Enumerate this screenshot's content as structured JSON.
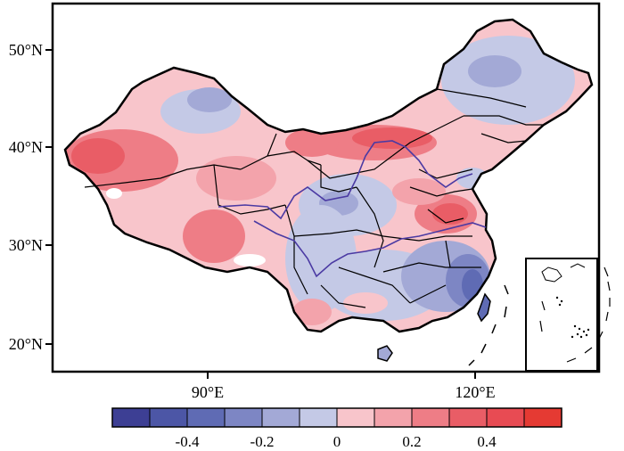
{
  "map": {
    "lat_labels": [
      "50°N",
      "40°N",
      "30°N",
      "20°N"
    ],
    "lon_labels": [
      "90°E",
      "120°E"
    ]
  },
  "colorbar": {
    "colors": [
      "#3d3f94",
      "#4c56a6",
      "#5f6bb4",
      "#7d86c4",
      "#a3a9d6",
      "#c4c9e6",
      "#f8c5cb",
      "#f3a3ab",
      "#ee7d86",
      "#e95d66",
      "#e84b53",
      "#e53a33"
    ],
    "tick_labels": [
      "-0.4",
      "-0.2",
      "0",
      "0.2",
      "0.4"
    ]
  }
}
